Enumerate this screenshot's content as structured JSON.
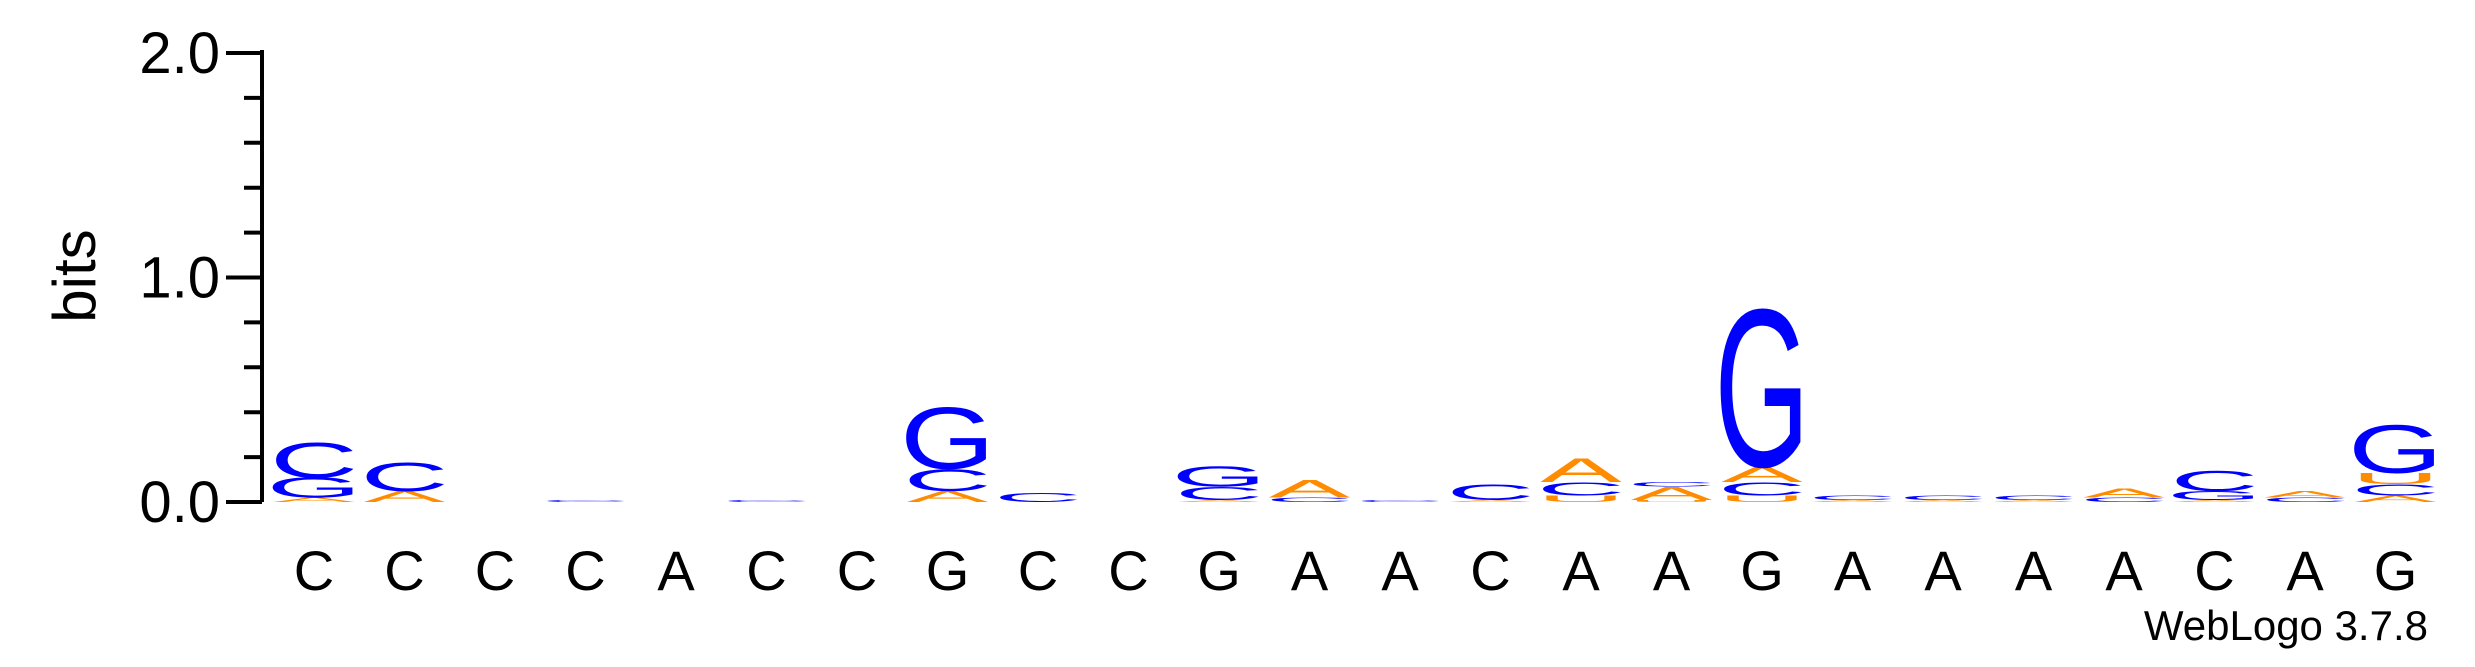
{
  "chart_data": {
    "type": "sequence-logo",
    "ylabel": "bits",
    "ylim": [
      0,
      2.0
    ],
    "yticks": [
      "0.0",
      "1.0",
      "2.0"
    ],
    "yticks_values": [
      0.0,
      1.0,
      2.0
    ],
    "minor_tick_step": 0.2,
    "credit": "WebLogo 3.7.8",
    "colors": {
      "A": "#ff8c00",
      "C": "#0000ff",
      "G": "#0000ff",
      "U": "#ff8c00",
      "T": "#ff8c00"
    },
    "positions": [
      {
        "label": "C",
        "stack": [
          {
            "letter": "A",
            "bits": 0.02
          },
          {
            "letter": "G",
            "bits": 0.09
          },
          {
            "letter": "C",
            "bits": 0.16
          }
        ]
      },
      {
        "label": "C",
        "stack": [
          {
            "letter": "A",
            "bits": 0.05
          },
          {
            "letter": "C",
            "bits": 0.13
          }
        ]
      },
      {
        "label": "C",
        "stack": []
      },
      {
        "label": "C",
        "stack": [
          {
            "letter": "C",
            "bits": 0.01
          }
        ]
      },
      {
        "label": "A",
        "stack": []
      },
      {
        "label": "C",
        "stack": [
          {
            "letter": "C",
            "bits": 0.01
          }
        ]
      },
      {
        "label": "C",
        "stack": []
      },
      {
        "label": "G",
        "stack": [
          {
            "letter": "A",
            "bits": 0.05
          },
          {
            "letter": "C",
            "bits": 0.1
          },
          {
            "letter": "G",
            "bits": 0.28
          }
        ]
      },
      {
        "label": "C",
        "stack": [
          {
            "letter": "C",
            "bits": 0.04
          }
        ]
      },
      {
        "label": "C",
        "stack": []
      },
      {
        "label": "G",
        "stack": [
          {
            "letter": "A",
            "bits": 0.01
          },
          {
            "letter": "C",
            "bits": 0.06
          },
          {
            "letter": "G",
            "bits": 0.09
          }
        ]
      },
      {
        "label": "A",
        "stack": [
          {
            "letter": "C",
            "bits": 0.02
          },
          {
            "letter": "A",
            "bits": 0.08
          }
        ]
      },
      {
        "label": "A",
        "stack": [
          {
            "letter": "C",
            "bits": 0.01
          }
        ]
      },
      {
        "label": "C",
        "stack": [
          {
            "letter": "A",
            "bits": 0.01
          },
          {
            "letter": "C",
            "bits": 0.07
          }
        ]
      },
      {
        "label": "A",
        "stack": [
          {
            "letter": "U",
            "bits": 0.03
          },
          {
            "letter": "C",
            "bits": 0.06
          },
          {
            "letter": "A",
            "bits": 0.11
          }
        ]
      },
      {
        "label": "A",
        "stack": [
          {
            "letter": "U",
            "bits": 0.01
          },
          {
            "letter": "A",
            "bits": 0.06
          },
          {
            "letter": "C",
            "bits": 0.02
          }
        ]
      },
      {
        "label": "G",
        "stack": [
          {
            "letter": "U",
            "bits": 0.03
          },
          {
            "letter": "C",
            "bits": 0.06
          },
          {
            "letter": "A",
            "bits": 0.07
          },
          {
            "letter": "G",
            "bits": 0.72
          }
        ]
      },
      {
        "label": "A",
        "stack": [
          {
            "letter": "A",
            "bits": 0.01
          },
          {
            "letter": "C",
            "bits": 0.02
          }
        ]
      },
      {
        "label": "A",
        "stack": [
          {
            "letter": "A",
            "bits": 0.01
          },
          {
            "letter": "C",
            "bits": 0.02
          }
        ]
      },
      {
        "label": "A",
        "stack": [
          {
            "letter": "A",
            "bits": 0.01
          },
          {
            "letter": "C",
            "bits": 0.02
          }
        ]
      },
      {
        "label": "A",
        "stack": [
          {
            "letter": "C",
            "bits": 0.02
          },
          {
            "letter": "A",
            "bits": 0.04
          }
        ]
      },
      {
        "label": "C",
        "stack": [
          {
            "letter": "A",
            "bits": 0.01
          },
          {
            "letter": "G",
            "bits": 0.04
          },
          {
            "letter": "C",
            "bits": 0.09
          }
        ]
      },
      {
        "label": "A",
        "stack": [
          {
            "letter": "C",
            "bits": 0.02
          },
          {
            "letter": "A",
            "bits": 0.03
          }
        ]
      },
      {
        "label": "G",
        "stack": [
          {
            "letter": "A",
            "bits": 0.03
          },
          {
            "letter": "C",
            "bits": 0.05
          },
          {
            "letter": "U",
            "bits": 0.05
          },
          {
            "letter": "G",
            "bits": 0.22
          }
        ]
      }
    ]
  }
}
